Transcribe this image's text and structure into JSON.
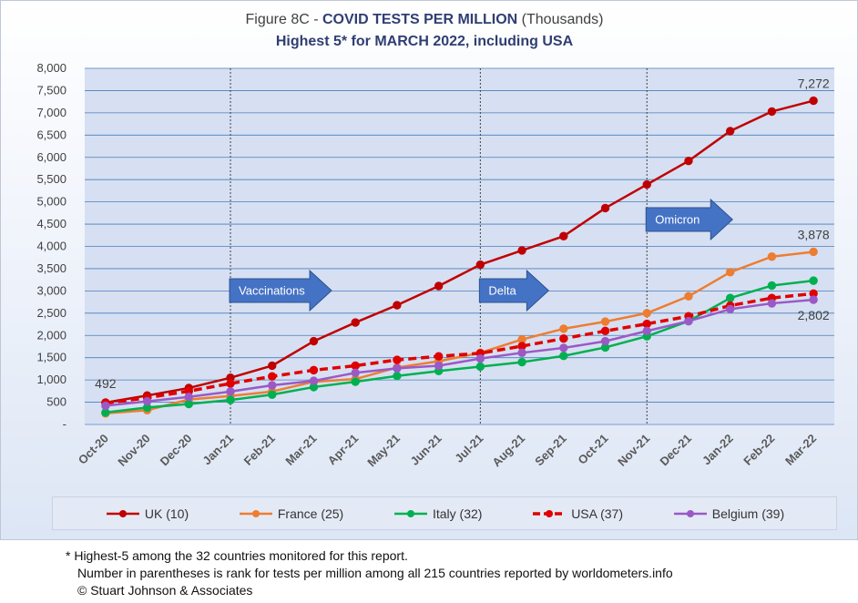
{
  "title": {
    "prefix": "Figure 8C - ",
    "bold": "COVID TESTS PER MILLION",
    "suffix": " (Thousands)",
    "subtitle": "Highest 5* for MARCH 2022, including USA"
  },
  "chart_data": {
    "type": "line",
    "categories": [
      "Oct-20",
      "Nov-20",
      "Dec-20",
      "Jan-21",
      "Feb-21",
      "Mar-21",
      "Apr-21",
      "May-21",
      "Jun-21",
      "Jul-21",
      "Aug-21",
      "Sep-21",
      "Oct-21",
      "Nov-21",
      "Dec-21",
      "Jan-22",
      "Feb-22",
      "Mar-22"
    ],
    "ylim": [
      0,
      8000
    ],
    "yticks": [
      "-",
      "500",
      "1,000",
      "1,500",
      "2,000",
      "2,500",
      "3,000",
      "3,500",
      "4,000",
      "4,500",
      "5,000",
      "5,500",
      "6,000",
      "6,500",
      "7,000",
      "7,500",
      "8,000"
    ],
    "grid": true,
    "legend_position": "bottom",
    "series": [
      {
        "name": "UK (10)",
        "color": "#c00000",
        "dash": false,
        "values": [
          492,
          650,
          820,
          1050,
          1320,
          1870,
          2290,
          2680,
          3110,
          3590,
          3910,
          4230,
          4860,
          5390,
          5920,
          6590,
          7030,
          7272
        ]
      },
      {
        "name": "France (25)",
        "color": "#ed7d31",
        "dash": false,
        "values": [
          250,
          320,
          560,
          640,
          740,
          960,
          1020,
          1280,
          1420,
          1610,
          1910,
          2150,
          2310,
          2500,
          2880,
          3420,
          3770,
          3878
        ]
      },
      {
        "name": "Italy (32)",
        "color": "#00b050",
        "dash": false,
        "values": [
          270,
          380,
          460,
          550,
          670,
          840,
          960,
          1090,
          1200,
          1300,
          1400,
          1540,
          1730,
          1980,
          2320,
          2840,
          3120,
          3230
        ]
      },
      {
        "name": "USA (37)",
        "color": "#e00000",
        "dash": true,
        "values": [
          480,
          600,
          750,
          920,
          1080,
          1220,
          1320,
          1450,
          1530,
          1600,
          1760,
          1930,
          2100,
          2260,
          2430,
          2670,
          2840,
          2940
        ]
      },
      {
        "name": "Belgium (39)",
        "color": "#9b59c6",
        "dash": false,
        "values": [
          420,
          520,
          620,
          740,
          880,
          980,
          1160,
          1260,
          1320,
          1480,
          1610,
          1720,
          1870,
          2100,
          2320,
          2590,
          2720,
          2802
        ]
      }
    ],
    "annotations": [
      {
        "text": "Vaccinations",
        "category": "Jan-21"
      },
      {
        "text": "Delta",
        "category": "Jul-21"
      },
      {
        "text": "Omicron",
        "category": "Nov-21"
      }
    ],
    "data_labels": [
      {
        "text": "492",
        "series": "UK (10)",
        "category": "Oct-20"
      },
      {
        "text": "7,272",
        "series": "UK (10)",
        "category": "Mar-22"
      },
      {
        "text": "3,878",
        "series": "France (25)",
        "category": "Mar-22"
      },
      {
        "text": "2,802",
        "series": "Belgium (39)",
        "category": "Mar-22"
      }
    ]
  },
  "footnotes": [
    "* Highest-5 among the 32 countries monitored for this report.",
    "Number in parentheses is rank for tests per million among all 215 countries reported by worldometers.info",
    "© Stuart Johnson & Associates"
  ]
}
